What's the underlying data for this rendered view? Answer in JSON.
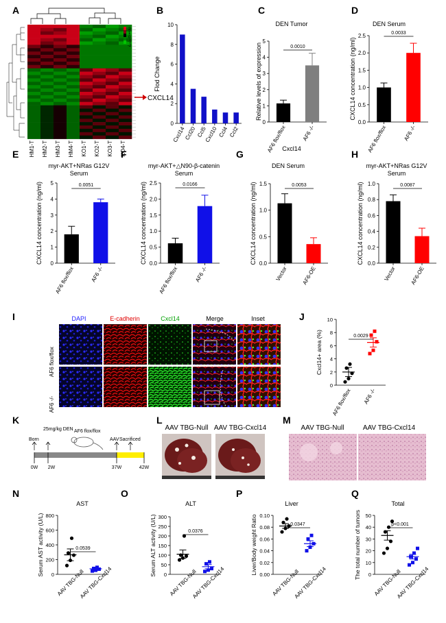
{
  "panels": {
    "A": {
      "letter": "A",
      "columns": [
        "HM1-T",
        "HM2-T",
        "HM3-T",
        "HM4-T",
        "KO1-T",
        "KO2-T",
        "KO3-T",
        "KO4-T"
      ],
      "scale_ticks": [
        "2",
        "1",
        "0",
        "-1",
        "-2"
      ],
      "highlight_label": "CXCL14",
      "colors": {
        "high": "#e0001a",
        "low": "#00c400",
        "mid": "#000000"
      }
    },
    "B": {
      "letter": "B",
      "chart_data": {
        "type": "bar",
        "categories": [
          "Cxcl14",
          "Ccl20",
          "Ccl5",
          "Cxcl10",
          "Ccl4",
          "Ccl2"
        ],
        "values": [
          9.0,
          3.5,
          2.7,
          1.4,
          1.1,
          1.1
        ],
        "ylabel": "Flod Change",
        "ylim": [
          0,
          10
        ],
        "yticks": [
          0,
          2,
          4,
          6,
          8,
          10
        ],
        "color": "#1010c8"
      }
    },
    "C": {
      "letter": "C",
      "chart_data": {
        "type": "bar",
        "title": "DEN Tumor",
        "categories": [
          "AF6 flox/flox",
          "AF6 -/-"
        ],
        "values": [
          1.15,
          3.5
        ],
        "errors": [
          0.2,
          0.75
        ],
        "ylabel": "Relative levels of expression",
        "xlabel": "Cxcl14",
        "ylim": [
          0,
          5
        ],
        "yticks": [
          0,
          1,
          2,
          3,
          4,
          5
        ],
        "colors": [
          "#000000",
          "#7f7f7f"
        ],
        "pvalue": "0.0010"
      }
    },
    "D": {
      "letter": "D",
      "chart_data": {
        "type": "bar",
        "title": "DEN Serum",
        "categories": [
          "AF6 flox/flox",
          "AF6 -/-"
        ],
        "values": [
          1.0,
          2.0
        ],
        "errors": [
          0.13,
          0.28
        ],
        "ylabel": "CXCL14 concentration (ng/ml)",
        "ylim": [
          0,
          2.5
        ],
        "yticks": [
          0.0,
          0.5,
          1.0,
          1.5,
          2.0,
          2.5
        ],
        "colors": [
          "#000000",
          "#ff0000"
        ],
        "pvalue": "0.0033"
      }
    },
    "E": {
      "letter": "E",
      "chart_data": {
        "type": "bar",
        "title": "myr-AKT+NRas G12V",
        "subtitle": "Serum",
        "categories": [
          "AF6 flox/flox",
          "AF6 -/-"
        ],
        "values": [
          1.8,
          3.8
        ],
        "errors": [
          0.5,
          0.2
        ],
        "ylabel": "CXCL14 concentration (ng/ml)",
        "ylim": [
          0,
          5
        ],
        "yticks": [
          0,
          1,
          2,
          3,
          4,
          5
        ],
        "colors": [
          "#000000",
          "#1010e8"
        ],
        "pvalue": "0.0051"
      }
    },
    "F": {
      "letter": "F",
      "chart_data": {
        "type": "bar",
        "title": "myr-AKT+△N90-β-catenin",
        "subtitle": "Serum",
        "categories": [
          "AF6 flox/flox",
          "AF6 -/-"
        ],
        "values": [
          0.62,
          1.78
        ],
        "errors": [
          0.16,
          0.34
        ],
        "ylabel": "CXCL14 concentration (ng/ml)",
        "ylim": [
          0,
          2.5
        ],
        "yticks": [
          0.0,
          0.5,
          1.0,
          1.5,
          2.0,
          2.5
        ],
        "colors": [
          "#000000",
          "#1010e8"
        ],
        "pvalue": "0.0166"
      }
    },
    "G": {
      "letter": "G",
      "chart_data": {
        "type": "bar",
        "title": "DEN Serum",
        "categories": [
          "Vector",
          "AF6-OE"
        ],
        "values": [
          1.13,
          0.36
        ],
        "errors": [
          0.18,
          0.12
        ],
        "ylabel": "CXCL14 concentration (ng/ml)",
        "ylim": [
          0,
          1.5
        ],
        "yticks": [
          0.0,
          0.5,
          1.0,
          1.5
        ],
        "colors": [
          "#000000",
          "#ff0000"
        ],
        "pvalue": "0.0053"
      }
    },
    "H": {
      "letter": "H",
      "chart_data": {
        "type": "bar",
        "title": "myr-AKT+NRas G12V",
        "subtitle": "Serum",
        "categories": [
          "Vector",
          "AF6-OE"
        ],
        "values": [
          0.78,
          0.34
        ],
        "errors": [
          0.08,
          0.1
        ],
        "ylabel": "CXCL14 concentration (ng/ml)",
        "ylim": [
          0,
          1.0
        ],
        "yticks": [
          0.0,
          0.2,
          0.4,
          0.6,
          0.8,
          1.0
        ],
        "colors": [
          "#000000",
          "#ff0000"
        ],
        "pvalue": "0.0087"
      }
    },
    "I": {
      "letter": "I",
      "column_labels": [
        "DAPI",
        "E-cadherin",
        "Cxcl14",
        "Merge",
        "Inset"
      ],
      "column_colors": [
        "#2020ff",
        "#e00000",
        "#00a000",
        "#000000",
        "#000000"
      ],
      "row_labels": [
        "AF6 flox/flox",
        "AF6 -/-"
      ]
    },
    "J": {
      "letter": "J",
      "chart_data": {
        "type": "scatter",
        "categories": [
          "AF6 flox/flox",
          "AF6 -/-"
        ],
        "points": [
          [
            0.5,
            1.0,
            1.8,
            2.6,
            3.2
          ],
          [
            4.8,
            5.3,
            6.6,
            7.6,
            8.2
          ]
        ],
        "means": [
          2.0,
          6.5
        ],
        "sems": [
          0.7,
          0.7
        ],
        "ylabel": "Cxcl14+ area (%)",
        "ylim": [
          0,
          10
        ],
        "yticks": [
          0,
          2,
          4,
          6,
          8,
          10
        ],
        "colors": [
          "#000000",
          "#ff0000"
        ],
        "pvalue": "0.0029"
      }
    },
    "K": {
      "letter": "K",
      "mouse_label": "AF6 flox/flox",
      "events": [
        "Born",
        "25mg/kg DEN",
        "AAV",
        "Sacrificed"
      ],
      "times": [
        "0W",
        "2W",
        "37W",
        "42W"
      ]
    },
    "L": {
      "letter": "L",
      "labels": [
        "AAV TBG-Null",
        "AAV TBG-Cxcl14"
      ]
    },
    "M": {
      "letter": "M",
      "labels": [
        "AAV TBG-Null",
        "AAV TBG-Cxcl14"
      ]
    },
    "N": {
      "letter": "N",
      "chart_data": {
        "type": "scatter",
        "title": "AST",
        "categories": [
          "AAV TBG-Null",
          "AAV TBG-Cxcl14"
        ],
        "points": [
          [
            120,
            190,
            260,
            290,
            490
          ],
          [
            45,
            55,
            70,
            80,
            95
          ]
        ],
        "means": [
          265,
          75
        ],
        "sems": [
          80,
          13
        ],
        "ylabel": "Serum AST activity (U/L)",
        "ylim": [
          0,
          800
        ],
        "yticks": [
          0,
          200,
          400,
          600,
          800
        ],
        "colors": [
          "#000000",
          "#1010e8"
        ],
        "pvalue": "0.0539"
      }
    },
    "O": {
      "letter": "O",
      "chart_data": {
        "type": "scatter",
        "title": "ALT",
        "categories": [
          "AAV TBG-Null",
          "AAV TBG-Cxcl14"
        ],
        "points": [
          [
            75,
            85,
            95,
            100,
            200
          ],
          [
            15,
            22,
            30,
            55,
            65
          ]
        ],
        "means": [
          105,
          40
        ],
        "sems": [
          22,
          11
        ],
        "ylabel": "Serum ALT activity (U/L)",
        "ylim": [
          0,
          300
        ],
        "yticks": [
          0,
          50,
          100,
          150,
          200,
          250,
          300
        ],
        "colors": [
          "#000000",
          "#1010e8"
        ],
        "pvalue": "0.0376"
      }
    },
    "P": {
      "letter": "P",
      "chart_data": {
        "type": "scatter",
        "title": "Liver",
        "categories": [
          "AAV TBG-Null",
          "AAV TBG-Cxcl14"
        ],
        "points": [
          [
            0.072,
            0.078,
            0.082,
            0.088,
            0.094
          ],
          [
            0.04,
            0.046,
            0.052,
            0.06,
            0.066
          ]
        ],
        "means": [
          0.082,
          0.052
        ],
        "sems": [
          0.004,
          0.005
        ],
        "ylabel": "Liver/Body weight Ratio",
        "ylim": [
          0,
          0.1
        ],
        "yticks": [
          0.0,
          0.02,
          0.04,
          0.06,
          0.08,
          0.1
        ],
        "colors": [
          "#000000",
          "#1010e8"
        ],
        "pvalue": "0.0347"
      }
    },
    "Q": {
      "letter": "Q",
      "chart_data": {
        "type": "scatter",
        "title": "Total",
        "categories": [
          "AAV TBG-Null",
          "AAV TBG-Cxcl14"
        ],
        "points": [
          [
            18,
            22,
            28,
            36,
            40,
            45
          ],
          [
            8,
            10,
            13,
            15,
            18,
            22
          ]
        ],
        "means": [
          33,
          15
        ],
        "sems": [
          4,
          2
        ],
        "ylabel": "The total number of tumors",
        "ylim": [
          0,
          50
        ],
        "yticks": [
          0,
          10,
          20,
          30,
          40,
          50
        ],
        "colors": [
          "#000000",
          "#1010e8"
        ],
        "pvalue": "p<0.001"
      }
    }
  }
}
